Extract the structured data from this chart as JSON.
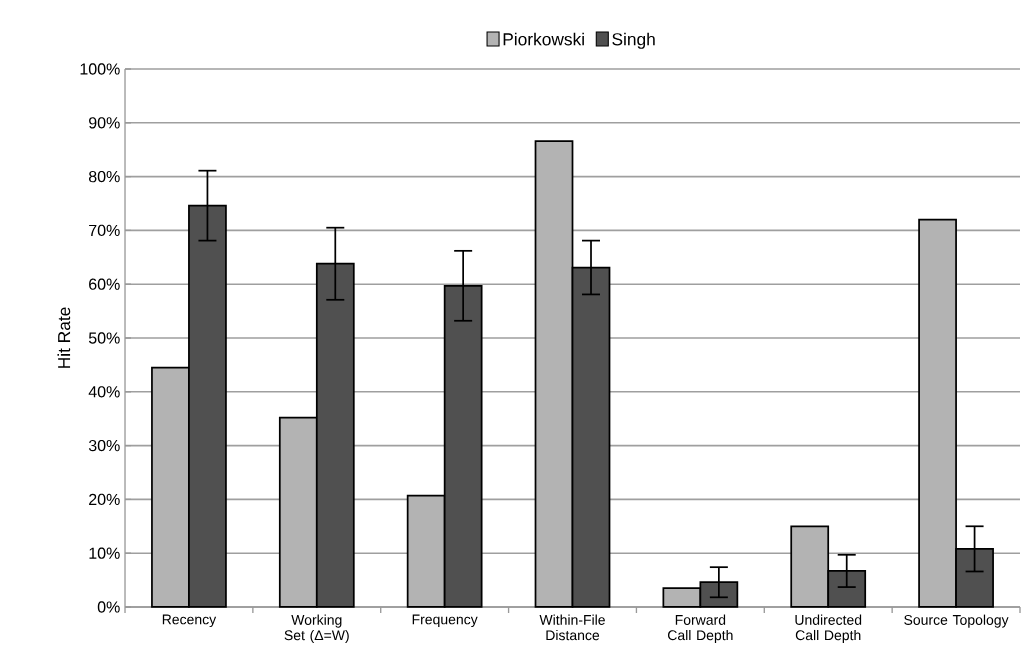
{
  "chart_data": {
    "type": "bar",
    "ylabel": "Hit Rate",
    "categories": [
      "Recency",
      "Working Set (Δ=W)",
      "Frequency",
      "Within-File Distance",
      "Forward Call Depth",
      "Undirected Call Depth",
      "Source Topology"
    ],
    "series": [
      {
        "name": "Piorkowski",
        "color": "#b3b3b3",
        "values": [
          44.5,
          35.2,
          20.7,
          86.6,
          3.5,
          15.0,
          72.0
        ]
      },
      {
        "name": "Singh",
        "color": "#505050",
        "values": [
          74.6,
          63.8,
          59.7,
          63.1,
          4.6,
          6.7,
          10.8
        ],
        "errors": [
          6.5,
          6.7,
          6.5,
          5.0,
          2.8,
          3.0,
          4.2
        ]
      }
    ],
    "ylim": [
      0,
      100
    ],
    "yticks": [
      {
        "value": 0,
        "label": "0%"
      },
      {
        "value": 10,
        "label": "10%"
      },
      {
        "value": 20,
        "label": "20%"
      },
      {
        "value": 30,
        "label": "30%"
      },
      {
        "value": 40,
        "label": "40%"
      },
      {
        "value": 50,
        "label": "50%"
      },
      {
        "value": 60,
        "label": "60%"
      },
      {
        "value": 70,
        "label": "70%"
      },
      {
        "value": 80,
        "label": "80%"
      },
      {
        "value": 90,
        "label": "90%"
      },
      {
        "value": 100,
        "label": "100%"
      }
    ],
    "grid": "y",
    "legend": "top"
  }
}
